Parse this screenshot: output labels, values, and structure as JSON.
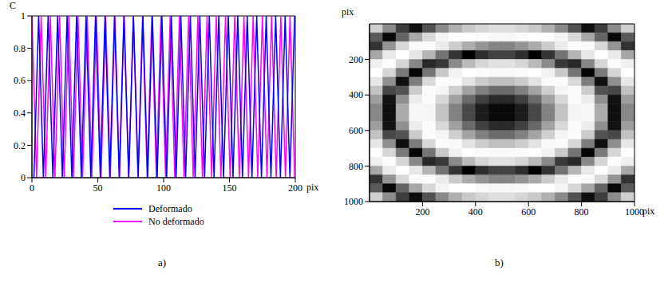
{
  "chart_data": [
    {
      "type": "line",
      "panel_label": "a)",
      "y_label": "C",
      "x_label": "pix",
      "xlim": [
        0,
        200
      ],
      "xticks": [
        0,
        50,
        100,
        150,
        200
      ],
      "ylim": [
        0,
        1
      ],
      "yticks": [
        0,
        0.2,
        0.4,
        0.6,
        0.8,
        1
      ],
      "legend": "bottom",
      "series": [
        {
          "name": "Deformado",
          "color": "#0000ff",
          "x": [
            1.5,
            5.1,
            8.7,
            12.3,
            15.9,
            19.5,
            23.1,
            26.7,
            30.3,
            33.9,
            37.5,
            41.1,
            44.7,
            48.3,
            51.9,
            55.5,
            59.1,
            62.7,
            66.3,
            69.9,
            73.5,
            77.1,
            80.7,
            84.3,
            87.9,
            91.5,
            95.1,
            98.7,
            102.3,
            105.9,
            109.5,
            113.1,
            116.7,
            120.3,
            123.9,
            127.5,
            131.1,
            134.7,
            138.3,
            141.9,
            145.5,
            149.1,
            152.7,
            156.3,
            159.9,
            163.5,
            167.1,
            170.7,
            174.3,
            177.9,
            181.5,
            185.1,
            188.7,
            192.3,
            195.9,
            199.5
          ],
          "values": [
            0,
            1,
            0,
            1,
            0,
            1,
            0,
            1,
            0,
            1,
            0,
            1,
            0,
            1,
            0,
            1,
            0,
            1,
            0,
            1,
            0,
            1,
            0,
            1,
            0,
            1,
            0,
            1,
            0,
            1,
            0,
            1,
            0,
            1,
            0,
            1,
            0,
            1,
            0,
            1,
            0,
            1,
            0,
            1,
            0,
            1,
            0,
            1,
            0,
            1,
            0,
            1,
            0,
            1,
            0,
            1
          ]
        },
        {
          "name": "No deformado",
          "color": "#ff00ff",
          "x": [
            0,
            3.5,
            7,
            10.5,
            14,
            17.5,
            21,
            24.5,
            28,
            31.5,
            35,
            38.5,
            42,
            45.5,
            49,
            52.5,
            56,
            59.5,
            63,
            66.5,
            70,
            73.5,
            77,
            80.5,
            84,
            87.5,
            91,
            94.5,
            98,
            101.5,
            105,
            108.5,
            112,
            115.5,
            119,
            122.5,
            126,
            129.5,
            133,
            136.5,
            140,
            143.5,
            147,
            150.5,
            154,
            157.5,
            161,
            164.5,
            168,
            171.5,
            175,
            178.5,
            182,
            185.5,
            189,
            192.5,
            196,
            199.5
          ],
          "values": [
            1,
            0,
            1,
            0,
            1,
            0,
            1,
            0,
            1,
            0,
            1,
            0,
            1,
            0,
            1,
            0,
            1,
            0,
            1,
            0,
            1,
            0,
            1,
            0,
            1,
            0,
            1,
            0,
            1,
            0,
            1,
            0,
            1,
            0,
            1,
            0,
            1,
            0,
            1,
            0,
            1,
            0,
            1,
            0,
            1,
            0,
            1,
            0,
            1,
            0,
            1,
            0,
            1,
            0,
            1,
            0,
            1,
            0
          ]
        }
      ]
    },
    {
      "type": "heatmap",
      "panel_label": "b)",
      "y_label": "pix",
      "x_label": "pix",
      "xlim": [
        0,
        1000
      ],
      "xticks": [
        200,
        400,
        600,
        800,
        1000
      ],
      "ylim": [
        0,
        1000
      ],
      "yticks": [
        200,
        400,
        600,
        800,
        1000
      ],
      "color_range": [
        0,
        1
      ],
      "cells": [
        [
          0.81,
          0.55,
          0.24,
          0.06,
          0.32,
          0.54,
          0.69,
          0.79,
          0.84,
          0.87,
          0.87,
          0.84,
          0.79,
          0.69,
          0.54,
          0.32,
          0.06,
          0.24,
          0.55,
          0.81
        ],
        [
          0.35,
          0.03,
          0.39,
          0.66,
          0.85,
          0.96,
          1,
          1,
          0.98,
          0.97,
          0.97,
          0.98,
          1,
          1,
          0.96,
          0.85,
          0.66,
          0.39,
          0.03,
          0.35
        ],
        [
          0.2,
          0.58,
          0.85,
          0.98,
          0.99,
          0.92,
          0.8,
          0.67,
          0.58,
          0.52,
          0.52,
          0.58,
          0.67,
          0.8,
          0.92,
          0.99,
          0.98,
          0.85,
          0.58,
          0.2
        ],
        [
          0.66,
          0.92,
          1,
          0.91,
          0.71,
          0.45,
          0.2,
          0,
          0.18,
          0.26,
          0.26,
          0.18,
          0,
          0.2,
          0.45,
          0.71,
          0.91,
          1,
          0.92,
          0.66
        ],
        [
          0.94,
          0.99,
          0.84,
          0.53,
          0.16,
          0.22,
          0.54,
          0.73,
          0.84,
          0.88,
          0.88,
          0.84,
          0.73,
          0.54,
          0.22,
          0.16,
          0.53,
          0.84,
          0.99,
          0.94
        ],
        [
          1,
          0.84,
          0.48,
          0.02,
          0.46,
          0.79,
          0.95,
          1,
          0.99,
          0.98,
          0.98,
          0.99,
          1,
          0.95,
          0.79,
          0.46,
          0.02,
          0.48,
          0.84,
          1
        ],
        [
          0.91,
          0.56,
          0.06,
          0.49,
          0.85,
          0.99,
          0.98,
          0.89,
          0.8,
          0.75,
          0.75,
          0.8,
          0.89,
          0.98,
          0.99,
          0.85,
          0.49,
          0.06,
          0.56,
          0.91
        ],
        [
          0.76,
          0.28,
          0.32,
          0.8,
          0.99,
          0.96,
          0.81,
          0.64,
          0.5,
          0.42,
          0.42,
          0.5,
          0.64,
          0.81,
          0.96,
          0.99,
          0.8,
          0.32,
          0.28,
          0.76
        ],
        [
          0.62,
          0.07,
          0.56,
          0.93,
          0.99,
          0.85,
          0.63,
          0.41,
          0.25,
          0.16,
          0.16,
          0.25,
          0.41,
          0.63,
          0.85,
          0.99,
          0.93,
          0.56,
          0.07,
          0.62
        ],
        [
          0.53,
          0.06,
          0.67,
          0.97,
          0.96,
          0.77,
          0.51,
          0.28,
          0.11,
          0.03,
          0.03,
          0.11,
          0.28,
          0.51,
          0.77,
          0.96,
          0.97,
          0.67,
          0.06,
          0.53
        ],
        [
          0.53,
          0.06,
          0.67,
          0.97,
          0.96,
          0.77,
          0.51,
          0.28,
          0.11,
          0.03,
          0.03,
          0.11,
          0.28,
          0.51,
          0.77,
          0.96,
          0.97,
          0.67,
          0.06,
          0.53
        ],
        [
          0.62,
          0.07,
          0.56,
          0.93,
          0.99,
          0.85,
          0.63,
          0.41,
          0.25,
          0.16,
          0.16,
          0.25,
          0.41,
          0.63,
          0.85,
          0.99,
          0.93,
          0.56,
          0.07,
          0.62
        ],
        [
          0.76,
          0.28,
          0.32,
          0.8,
          0.99,
          0.96,
          0.81,
          0.64,
          0.5,
          0.42,
          0.42,
          0.5,
          0.64,
          0.81,
          0.96,
          0.99,
          0.8,
          0.32,
          0.28,
          0.76
        ],
        [
          0.91,
          0.56,
          0.06,
          0.49,
          0.85,
          0.99,
          0.98,
          0.89,
          0.8,
          0.75,
          0.75,
          0.8,
          0.89,
          0.98,
          0.99,
          0.85,
          0.49,
          0.06,
          0.56,
          0.91
        ],
        [
          1,
          0.84,
          0.48,
          0.02,
          0.46,
          0.79,
          0.95,
          1,
          0.99,
          0.98,
          0.98,
          0.99,
          1,
          0.95,
          0.79,
          0.46,
          0.02,
          0.48,
          0.84,
          1
        ],
        [
          0.94,
          0.99,
          0.84,
          0.53,
          0.16,
          0.22,
          0.54,
          0.73,
          0.84,
          0.88,
          0.88,
          0.84,
          0.73,
          0.54,
          0.22,
          0.16,
          0.53,
          0.84,
          0.99,
          0.94
        ],
        [
          0.66,
          0.92,
          1,
          0.91,
          0.71,
          0.45,
          0.2,
          0,
          0.18,
          0.26,
          0.26,
          0.18,
          0,
          0.2,
          0.45,
          0.71,
          0.91,
          1,
          0.92,
          0.66
        ],
        [
          0.2,
          0.58,
          0.85,
          0.98,
          0.99,
          0.92,
          0.8,
          0.67,
          0.58,
          0.52,
          0.52,
          0.58,
          0.67,
          0.8,
          0.92,
          0.99,
          0.98,
          0.85,
          0.58,
          0.2
        ],
        [
          0.35,
          0.03,
          0.39,
          0.66,
          0.85,
          0.96,
          1,
          1,
          0.98,
          0.97,
          0.97,
          0.98,
          1,
          1,
          0.96,
          0.85,
          0.66,
          0.39,
          0.03,
          0.35
        ],
        [
          0.81,
          0.55,
          0.24,
          0.06,
          0.32,
          0.54,
          0.69,
          0.79,
          0.84,
          0.87,
          0.87,
          0.84,
          0.79,
          0.69,
          0.54,
          0.32,
          0.06,
          0.24,
          0.55,
          0.81
        ]
      ]
    }
  ]
}
